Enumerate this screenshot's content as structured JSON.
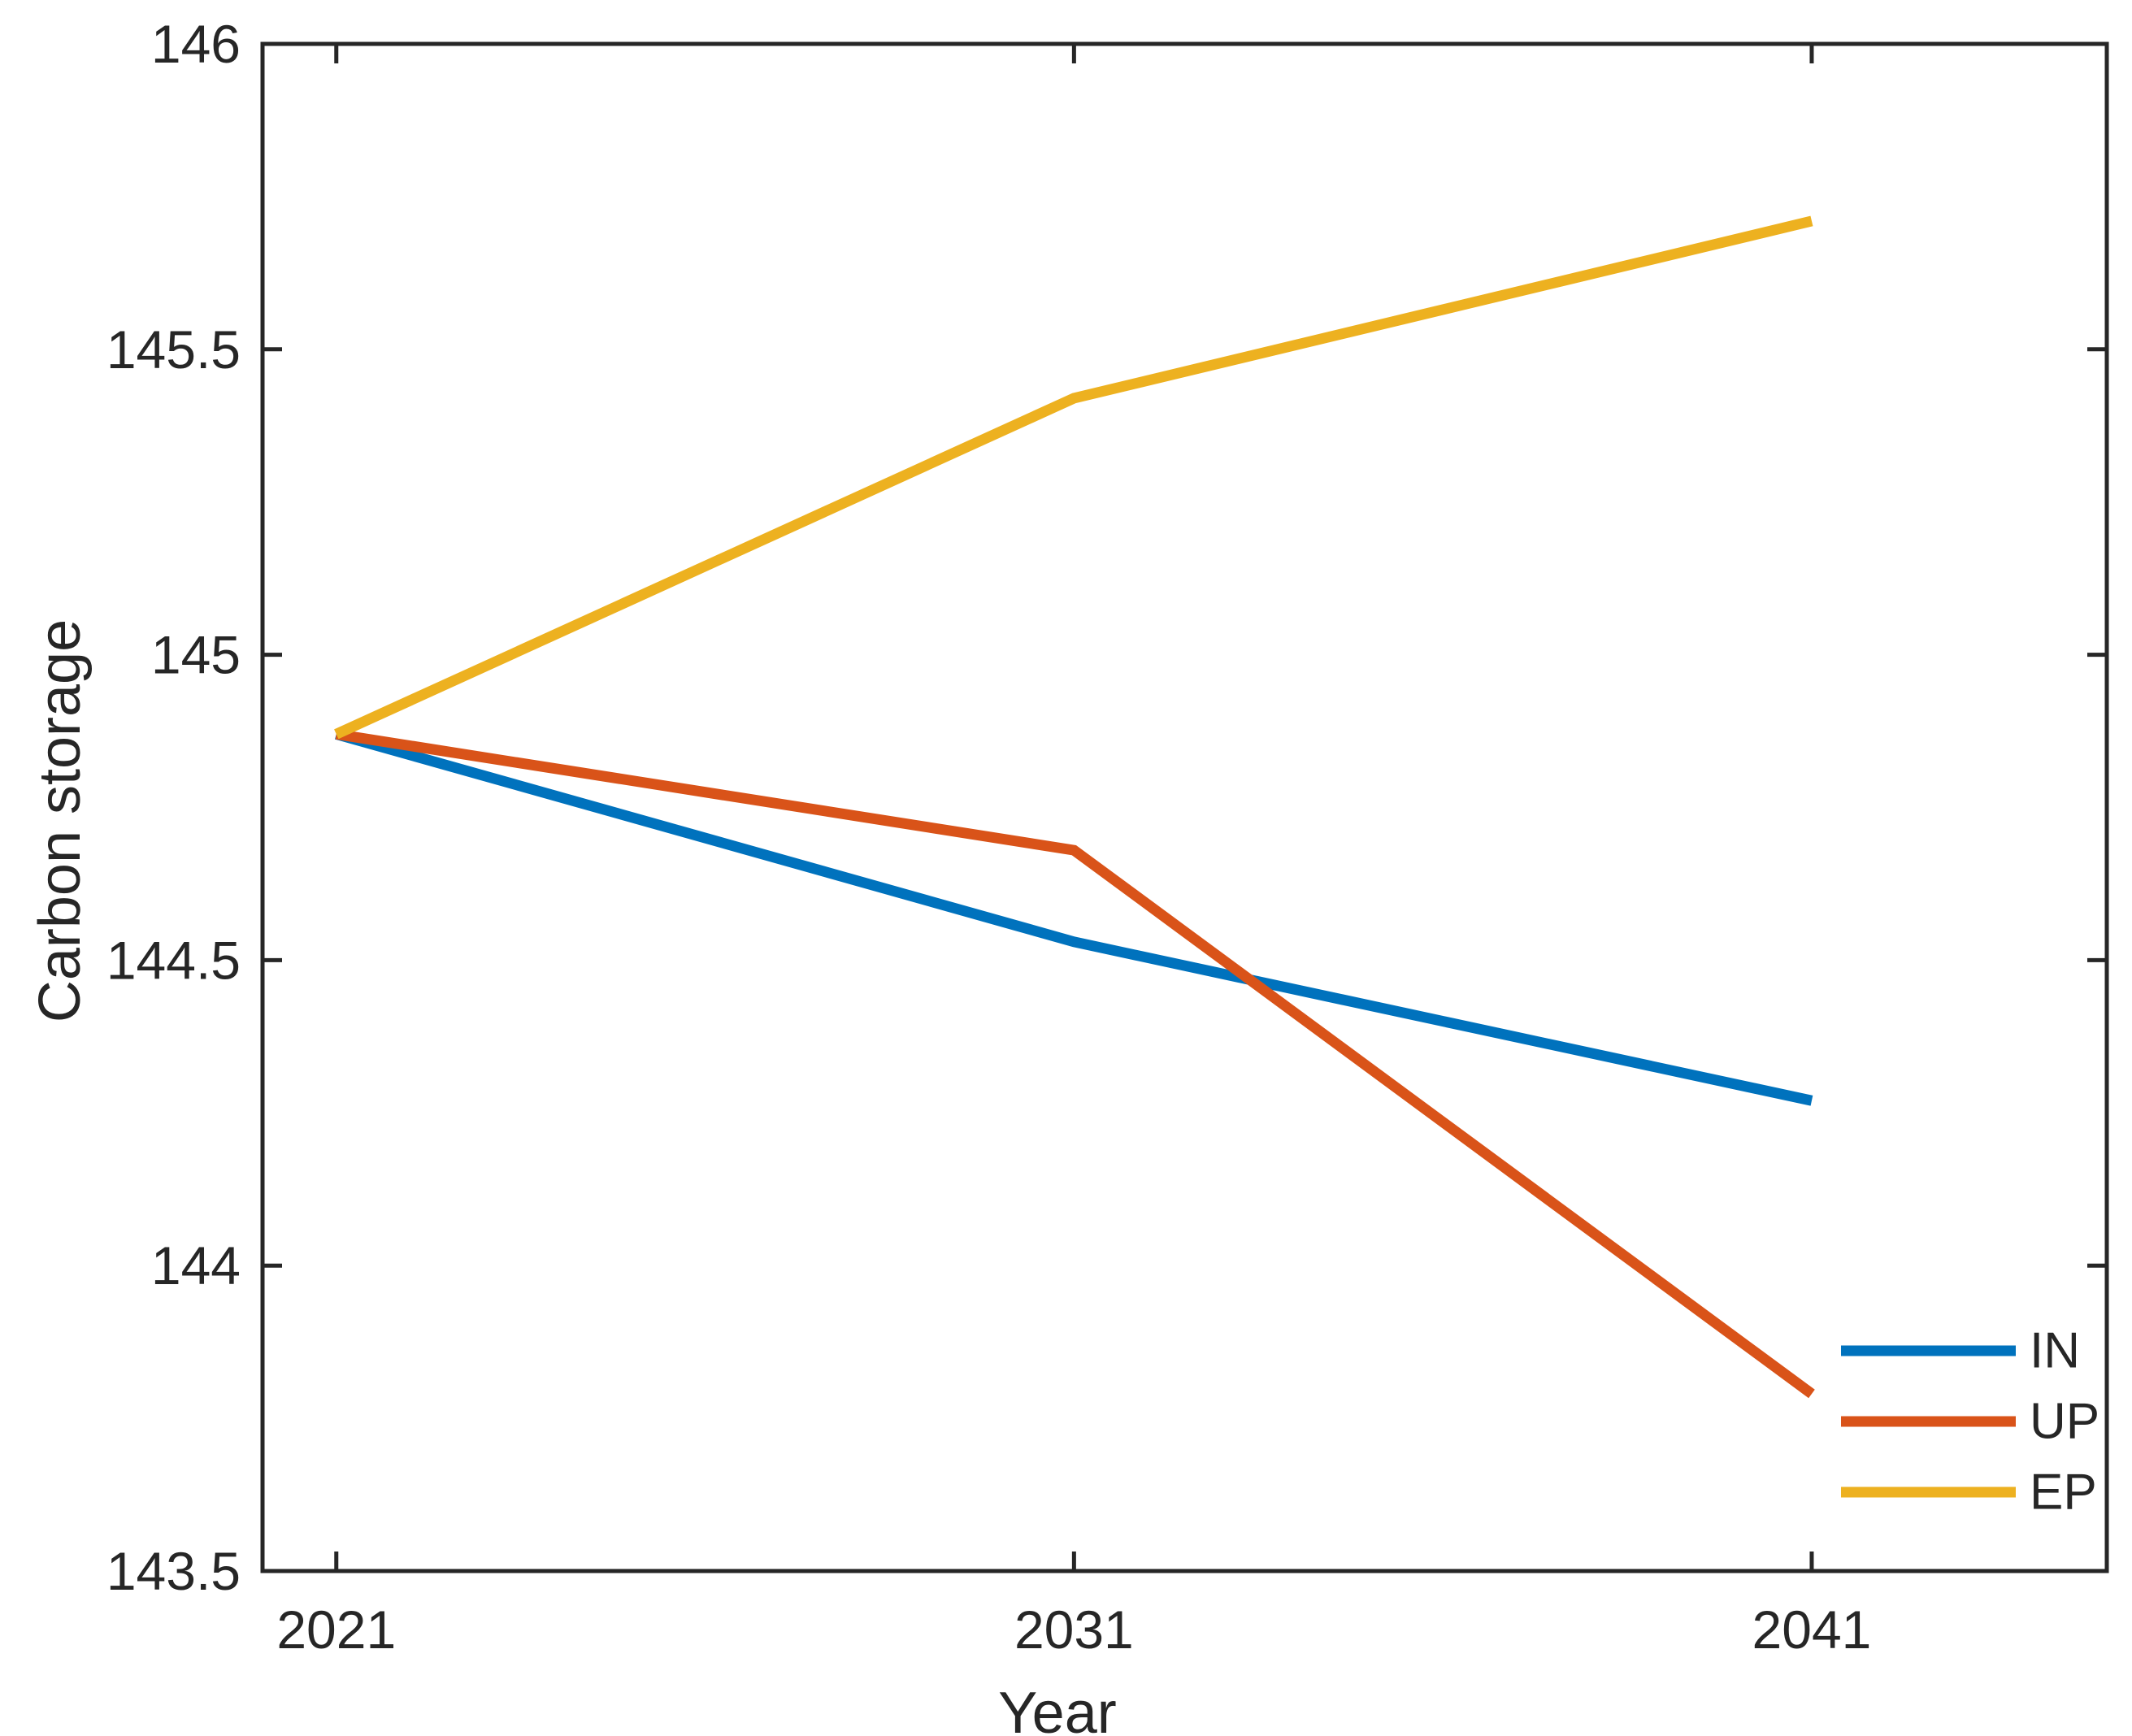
{
  "chart_data": {
    "type": "line",
    "title": "",
    "xlabel": "Year",
    "ylabel": "Carbon storage",
    "x": [
      2021,
      2031,
      2041
    ],
    "series": [
      {
        "name": "IN",
        "color": "#0072BD",
        "values": [
          144.87,
          144.53,
          144.27
        ]
      },
      {
        "name": "UP",
        "color": "#D95319",
        "values": [
          144.87,
          144.68,
          143.79
        ]
      },
      {
        "name": "EP",
        "color": "#EDB120",
        "values": [
          144.87,
          145.42,
          145.71
        ]
      }
    ],
    "xlim": [
      2020,
      2045
    ],
    "ylim": [
      143.5,
      146
    ],
    "xticks": {
      "values": [
        2021,
        2031,
        2041
      ],
      "labels": [
        "2021",
        "2031",
        "2041"
      ]
    },
    "yticks": {
      "values": [
        143.5,
        144,
        144.5,
        145,
        145.5,
        146
      ],
      "labels": [
        "143.5",
        "144",
        "144.5",
        "145",
        "145.5",
        "146"
      ]
    },
    "legend": {
      "position": "bottom-right",
      "entries": [
        "IN",
        "UP",
        "EP"
      ]
    },
    "grid": false,
    "axis_color": "#262626",
    "background_color": "#ffffff"
  }
}
